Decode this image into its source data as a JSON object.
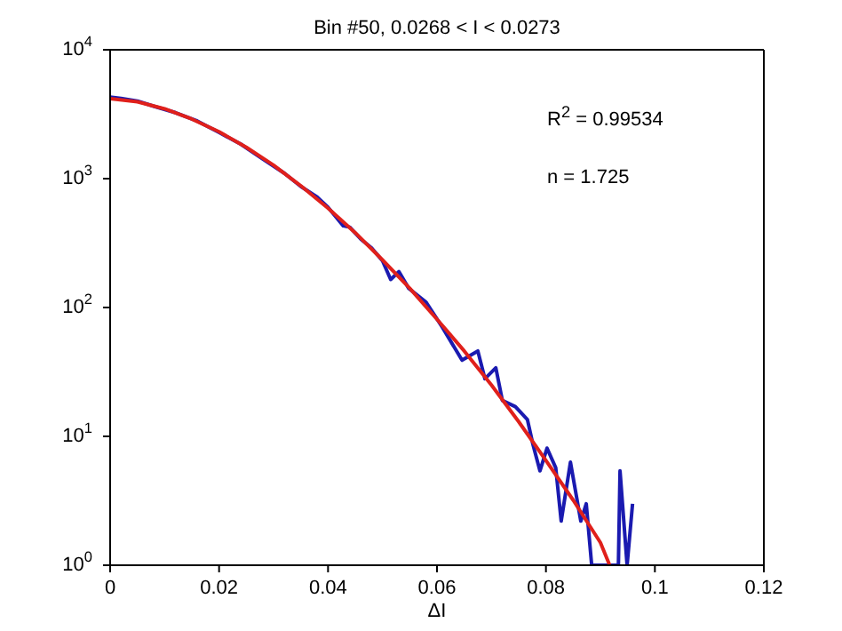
{
  "chart_data": {
    "type": "line",
    "title": "Bin #50, 0.0268 < I < 0.0273",
    "xlabel": "ΔI",
    "log": "y",
    "xlim": [
      0,
      0.12
    ],
    "xticks": [
      0,
      0.02,
      0.04,
      0.06,
      0.08,
      0.1,
      0.12
    ],
    "ylim": [
      1,
      10000
    ],
    "yticks": [
      {
        "value": 1,
        "label": "10$^{0}$"
      },
      {
        "value": 10,
        "label": "10$^{1}$"
      },
      {
        "value": 100,
        "label": "10$^{2}$"
      },
      {
        "value": 1000,
        "label": "10$^{3}$"
      },
      {
        "value": 10000,
        "label": "10$^{4}$"
      }
    ],
    "annotations": [
      "R$^{2}$ = 0.99534",
      "n = 1.725"
    ],
    "series": [
      {
        "color": "#1a1ab0",
        "x": [
          0,
          0.002,
          0.005,
          0.008,
          0.012,
          0.016,
          0.02,
          0.024,
          0.028,
          0.032,
          0.035,
          0.038,
          0.04,
          0.0428,
          0.044,
          0.046,
          0.048,
          0.05,
          0.0515,
          0.053,
          0.0548,
          0.058,
          0.061,
          0.0646,
          0.0675,
          0.0688,
          0.0708,
          0.072,
          0.0744,
          0.0766,
          0.0776,
          0.0789,
          0.0802,
          0.0818,
          0.0828,
          0.0845,
          0.0864,
          0.0874,
          0.0884,
          0.0917,
          0.0933,
          0.0936,
          0.0949,
          0.0959
        ],
        "values": [
          4300,
          4200,
          4000,
          3650,
          3250,
          2800,
          2280,
          1850,
          1420,
          1100,
          870,
          720,
          600,
          430,
          420,
          340,
          290,
          230,
          165,
          190,
          141,
          110,
          70,
          39,
          46,
          28,
          34,
          19,
          17,
          13.5,
          8.7,
          5.4,
          8.1,
          5.7,
          2.2,
          6.3,
          2.2,
          3,
          1,
          1,
          1,
          5.4,
          1,
          3
        ]
      },
      {
        "color": "#e0201b",
        "x": [
          0,
          0.005,
          0.01,
          0.015,
          0.02,
          0.025,
          0.03,
          0.035,
          0.04,
          0.045,
          0.05,
          0.055,
          0.06,
          0.065,
          0.07,
          0.075,
          0.08,
          0.085,
          0.09,
          0.0917
        ],
        "values": [
          4170,
          3950,
          3480,
          2900,
          2310,
          1750,
          1270,
          880,
          590,
          380,
          234,
          141,
          81,
          46,
          25,
          13,
          6.5,
          3.2,
          1.5,
          1
        ]
      }
    ]
  }
}
